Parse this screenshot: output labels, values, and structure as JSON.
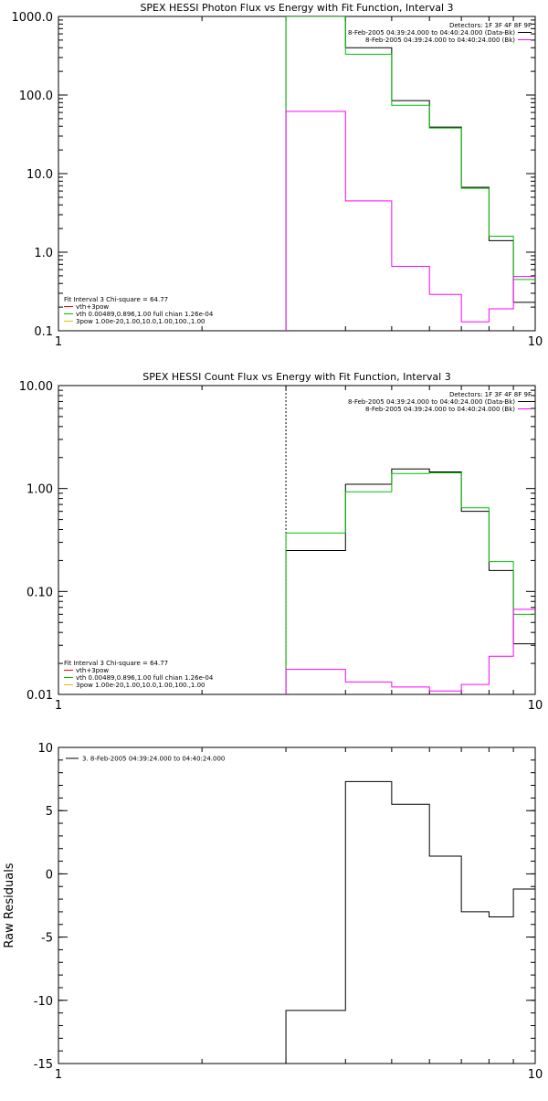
{
  "chart_data": [
    {
      "type": "line",
      "title": "SPEX HESSI Photon Flux vs Energy with Fit Function, Interval 3",
      "xlabel": "",
      "ylabel": "",
      "xscale": "log",
      "yscale": "log",
      "xlim": [
        1,
        10
      ],
      "ylim": [
        0.1,
        1000
      ],
      "xticks": [
        {
          "v": 1,
          "label": "1"
        },
        {
          "v": 10,
          "label": "10"
        }
      ],
      "yticks": [
        {
          "v": 0.1,
          "label": "0.1"
        },
        {
          "v": 1,
          "label": "1.0"
        },
        {
          "v": 10,
          "label": "10.0"
        },
        {
          "v": 100,
          "label": "100.0"
        },
        {
          "v": 1000,
          "label": "1000.0"
        }
      ],
      "vline": {
        "x": 3,
        "color": "#00c000",
        "dashed": true
      },
      "legend_top": {
        "title": "Detectors: 1F 3F 4F 8F 9F",
        "position": "top-right",
        "entries": [
          {
            "text": "8-Feb-2005 04:39:24.000 to 04:40:24.000 (Data-Bk)",
            "color": "#000000"
          },
          {
            "text": "8-Feb-2005 04:39:24.000 to 04:40:24.000 (Bk)",
            "color": "#ff00ff"
          }
        ]
      },
      "legend_bottom": {
        "title": "Fit Interval 3   Chi-square = 64.77",
        "position": "bottom-left",
        "entries": [
          {
            "text": "vth+3pow",
            "color": "#ff0000"
          },
          {
            "text": "vth 0.00489,0.896,1.00  full chian 1.26e-04",
            "color": "#00c000"
          },
          {
            "text": "3pow 1.00e-20,1.00,10.0,1.00,100.,1.00",
            "color": "#e0c000"
          }
        ]
      },
      "series": [
        {
          "color": "#000000",
          "edges": [
            3,
            4,
            5,
            6,
            7,
            8,
            9,
            10
          ],
          "values": [
            1000,
            400,
            85,
            39,
            6.7,
            1.4,
            0.23
          ]
        },
        {
          "color": "#00c000",
          "edges": [
            3,
            4,
            5,
            6,
            7,
            8,
            9,
            10
          ],
          "values": [
            1000,
            330,
            74,
            38,
            6.5,
            1.6,
            0.45
          ]
        },
        {
          "color": "#ff00ff",
          "edges": [
            3,
            4,
            5,
            6,
            7,
            8,
            9,
            10
          ],
          "values": [
            62,
            4.5,
            0.66,
            0.29,
            0.13,
            0.19,
            0.49
          ]
        }
      ]
    },
    {
      "type": "line",
      "title": "SPEX HESSI Count Flux vs Energy with Fit Function, Interval 3",
      "xlabel": "",
      "ylabel": "",
      "xscale": "log",
      "yscale": "log",
      "xlim": [
        1,
        10
      ],
      "ylim": [
        0.01,
        10
      ],
      "xticks": [
        {
          "v": 1,
          "label": "1"
        },
        {
          "v": 10,
          "label": "10"
        }
      ],
      "yticks": [
        {
          "v": 0.01,
          "label": "0.01"
        },
        {
          "v": 0.1,
          "label": "0.10"
        },
        {
          "v": 1,
          "label": "1.00"
        },
        {
          "v": 10,
          "label": "10.00"
        }
      ],
      "vline": {
        "x": 3,
        "color": "#000000",
        "dashed": true
      },
      "legend_top": {
        "title": "Detectors: 1F 3F 4F 8F 9F",
        "position": "top-right",
        "entries": [
          {
            "text": "8-Feb-2005 04:39:24.000 to 04:40:24.000 (Data-Bk)",
            "color": "#000000"
          },
          {
            "text": "8-Feb-2005 04:39:24.000 to 04:40:24.000 (Bk)",
            "color": "#ff00ff"
          }
        ]
      },
      "legend_bottom": {
        "title": "Fit Interval 3   Chi-square = 64.77",
        "position": "bottom-left",
        "entries": [
          {
            "text": "vth+3pow",
            "color": "#ff0000"
          },
          {
            "text": "vth 0.00489,0.896,1.00  full chian 1.26e-04",
            "color": "#00c000"
          },
          {
            "text": "3pow 1.00e-20,1.00,10.0,1.00,100.,1.00",
            "color": "#e0c000"
          }
        ]
      },
      "series": [
        {
          "color": "#000000",
          "edges": [
            3,
            4,
            5,
            6,
            7,
            8,
            9,
            10
          ],
          "values": [
            0.25,
            1.1,
            1.55,
            1.45,
            0.6,
            0.16,
            0.031
          ]
        },
        {
          "color": "#00c000",
          "edges": [
            3,
            4,
            5,
            6,
            7,
            8,
            9,
            10
          ],
          "values": [
            0.37,
            0.93,
            1.4,
            1.42,
            0.65,
            0.195,
            0.06
          ]
        },
        {
          "color": "#ff00ff",
          "edges": [
            3,
            4,
            5,
            6,
            7,
            8,
            9,
            10
          ],
          "values": [
            0.0175,
            0.0132,
            0.0118,
            0.0108,
            0.0125,
            0.0235,
            0.067
          ]
        }
      ]
    },
    {
      "type": "line",
      "title": "",
      "xlabel": "",
      "ylabel": "Raw Residuals",
      "xscale": "log",
      "yscale": "linear",
      "xlim": [
        1,
        10
      ],
      "ylim": [
        -15,
        10
      ],
      "xticks": [
        {
          "v": 1,
          "label": "1"
        },
        {
          "v": 10,
          "label": "10"
        }
      ],
      "yticks": [
        {
          "v": -15,
          "label": "-15"
        },
        {
          "v": -10,
          "label": "-10"
        },
        {
          "v": -5,
          "label": "-5"
        },
        {
          "v": 0,
          "label": "0"
        },
        {
          "v": 5,
          "label": "5"
        },
        {
          "v": 10,
          "label": "10"
        }
      ],
      "vline": null,
      "legend_top": {
        "title": "",
        "position": "top-left",
        "entries": [
          {
            "text": "3.  8-Feb-2005 04:39:24.000 to 04:40:24.000",
            "color": "#000000"
          }
        ]
      },
      "legend_bottom": null,
      "series": [
        {
          "color": "#000000",
          "edges": [
            3,
            4,
            5,
            6,
            7,
            8,
            9,
            10
          ],
          "values": [
            -10.8,
            7.3,
            5.5,
            1.4,
            -3.0,
            -3.4,
            -1.2
          ]
        }
      ]
    }
  ]
}
